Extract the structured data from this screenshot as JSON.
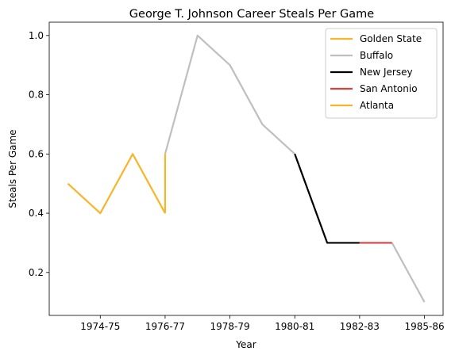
{
  "chart_data": {
    "type": "line",
    "title": "George T. Johnson Career Steals Per Game",
    "xlabel": "Year",
    "ylabel": "Steals Per Game",
    "x_tick_labels": [
      "1974-75",
      "1976-77",
      "1978-79",
      "1980-81",
      "1982-83",
      "1985-86"
    ],
    "y_tick_labels": [
      "0.2",
      "0.4",
      "0.6",
      "0.8",
      "1.0"
    ],
    "y_ticks": [
      0.2,
      0.4,
      0.6,
      0.8,
      1.0
    ],
    "ylim": [
      0.055,
      1.045
    ],
    "xlim": [
      -0.575,
      11.575
    ],
    "x_tick_positions": [
      1,
      3,
      5,
      7,
      9,
      11
    ],
    "grid": false,
    "legend_position": "top-right",
    "series": [
      {
        "name": "Golden State",
        "color": "#f7b52a",
        "points": [
          [
            0,
            0.5
          ],
          [
            1,
            0.4
          ],
          [
            2,
            0.6
          ],
          [
            3,
            0.4
          ]
        ]
      },
      {
        "name": "Buffalo",
        "color": "#bfbfbf",
        "points": [
          [
            3,
            0.6
          ],
          [
            4,
            1.0
          ],
          [
            5,
            0.9
          ],
          [
            6,
            0.7
          ],
          [
            7,
            0.6
          ]
        ]
      },
      {
        "name": "New Jersey",
        "color": "#000000",
        "points": [
          [
            7,
            0.6
          ],
          [
            8,
            0.3
          ],
          [
            9,
            0.3
          ]
        ]
      },
      {
        "name": "San Antonio",
        "color": "#d94040",
        "points": [
          [
            9,
            0.3
          ],
          [
            10,
            0.3
          ]
        ]
      },
      {
        "name": "Atlanta",
        "color": "#f7b52a",
        "points": [
          [
            3,
            0.6
          ],
          [
            3,
            0.4
          ]
        ]
      }
    ],
    "extra_segments": [
      {
        "color": "#bfbfbf",
        "points": [
          [
            10,
            0.3
          ],
          [
            11,
            0.1
          ]
        ]
      }
    ]
  }
}
